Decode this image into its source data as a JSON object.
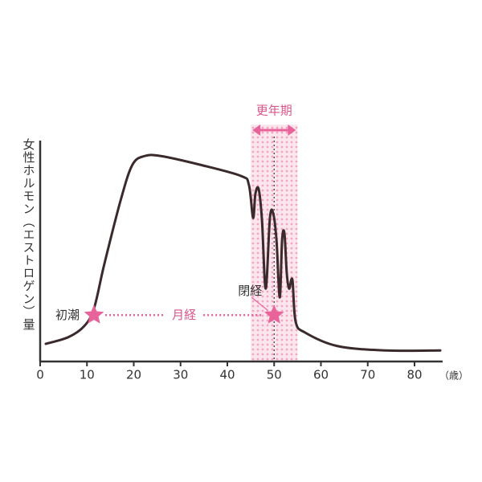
{
  "chart_data": {
    "type": "line",
    "y_label": "女性ホルモン（エストロゲン）量",
    "x_label": "（歳）",
    "xlim": [
      0,
      86
    ],
    "ylim": [
      0,
      100
    ],
    "xticks": [
      0,
      10,
      20,
      30,
      40,
      50,
      60,
      70,
      80
    ],
    "x": [
      1.2,
      6,
      9.4,
      11.5,
      13.7,
      17.2,
      19.7,
      22.3,
      25.8,
      34.3,
      42.9,
      44.6,
      45.5,
      46,
      46.7,
      47.4,
      48.2,
      49.1,
      49.8,
      50.5,
      51.2,
      51.7,
      52.2,
      52.7,
      53.2,
      53.9,
      54.6,
      56.7,
      63.5,
      73.8,
      85.5
    ],
    "series": [
      {
        "color": "#3a2a2c",
        "values": [
          8,
          11,
          16,
          24,
          44,
          73,
          89,
          93,
          93,
          89,
          84,
          80,
          65,
          76,
          78,
          64,
          33,
          65,
          67,
          55,
          29,
          55,
          58,
          40,
          33,
          37,
          18,
          13,
          7,
          5,
          5
        ]
      }
    ],
    "band": {
      "label": "更年期",
      "start": 45,
      "end": 55,
      "color": "#f3b8cf"
    },
    "markers": [
      {
        "label": "初潮",
        "x": 11.5,
        "y": 21
      },
      {
        "label": "閉経",
        "x": 50,
        "y": 21
      }
    ],
    "span_label": "月経",
    "accent_color": "#e8639a"
  }
}
